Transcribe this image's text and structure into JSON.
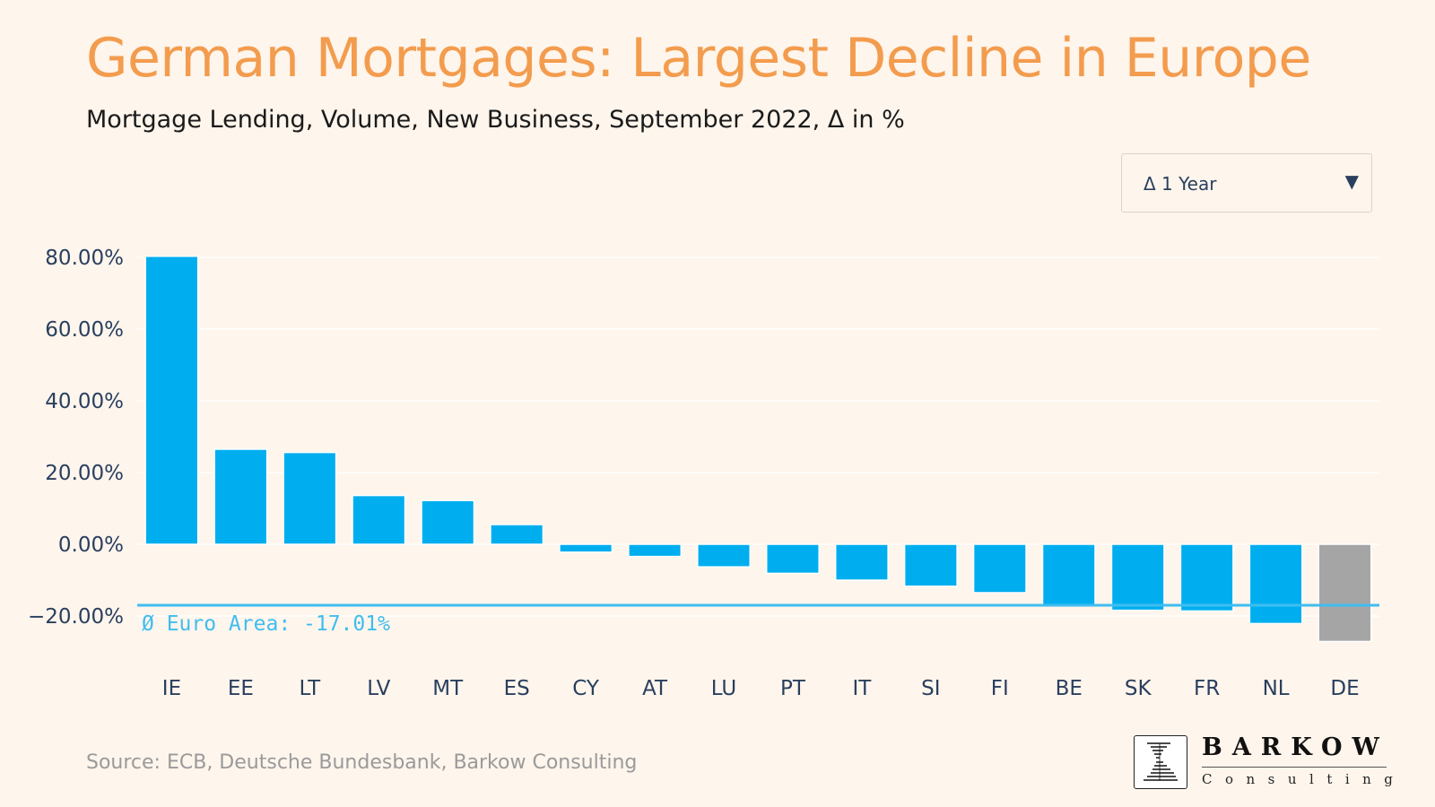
{
  "header": {
    "title": "German Mortgages: Largest Decline in Europe",
    "subtitle": "Mortgage Lending, Volume, New Business, September 2022,  Δ in %"
  },
  "controls": {
    "period_dropdown": {
      "selected": "Δ 1 Year",
      "arrow_icon": "caret-down-icon"
    }
  },
  "chart_data": {
    "type": "bar",
    "categories": [
      "IE",
      "EE",
      "LT",
      "LV",
      "MT",
      "ES",
      "CY",
      "AT",
      "LU",
      "PT",
      "IT",
      "SI",
      "FI",
      "BE",
      "SK",
      "FR",
      "NL",
      "DE"
    ],
    "values": [
      80.3,
      26.5,
      25.6,
      13.6,
      12.2,
      5.5,
      -2.2,
      -3.4,
      -6.3,
      -8.1,
      -10.0,
      -11.7,
      -13.5,
      -17.0,
      -18.4,
      -18.6,
      -22.1,
      -27.1
    ],
    "ylim": [
      -20,
      80
    ],
    "yticks": [
      80,
      60,
      40,
      20,
      0,
      -20
    ],
    "ytick_labels": [
      "80.00%",
      "60.00%",
      "40.00%",
      "20.00%",
      "0.00%",
      "−20.00%"
    ],
    "reference_line": {
      "value": -17.01,
      "label": "Ø Euro Area: -17.01%"
    },
    "grid": true,
    "colors": {
      "bar": "#00AEEF",
      "highlight": "#A5A5A5",
      "highlight_category": "DE",
      "reference": "#3FBDF0",
      "grid": "#FFFFFF",
      "axis_text": "#2a3f5f"
    }
  },
  "footer": {
    "source": "Source: ECB, Deutsche Bundesbank, Barkow Consulting",
    "logo_word": "BARKOW",
    "logo_sub": "Consulting",
    "logo_icon": "barkow-logo-icon"
  }
}
